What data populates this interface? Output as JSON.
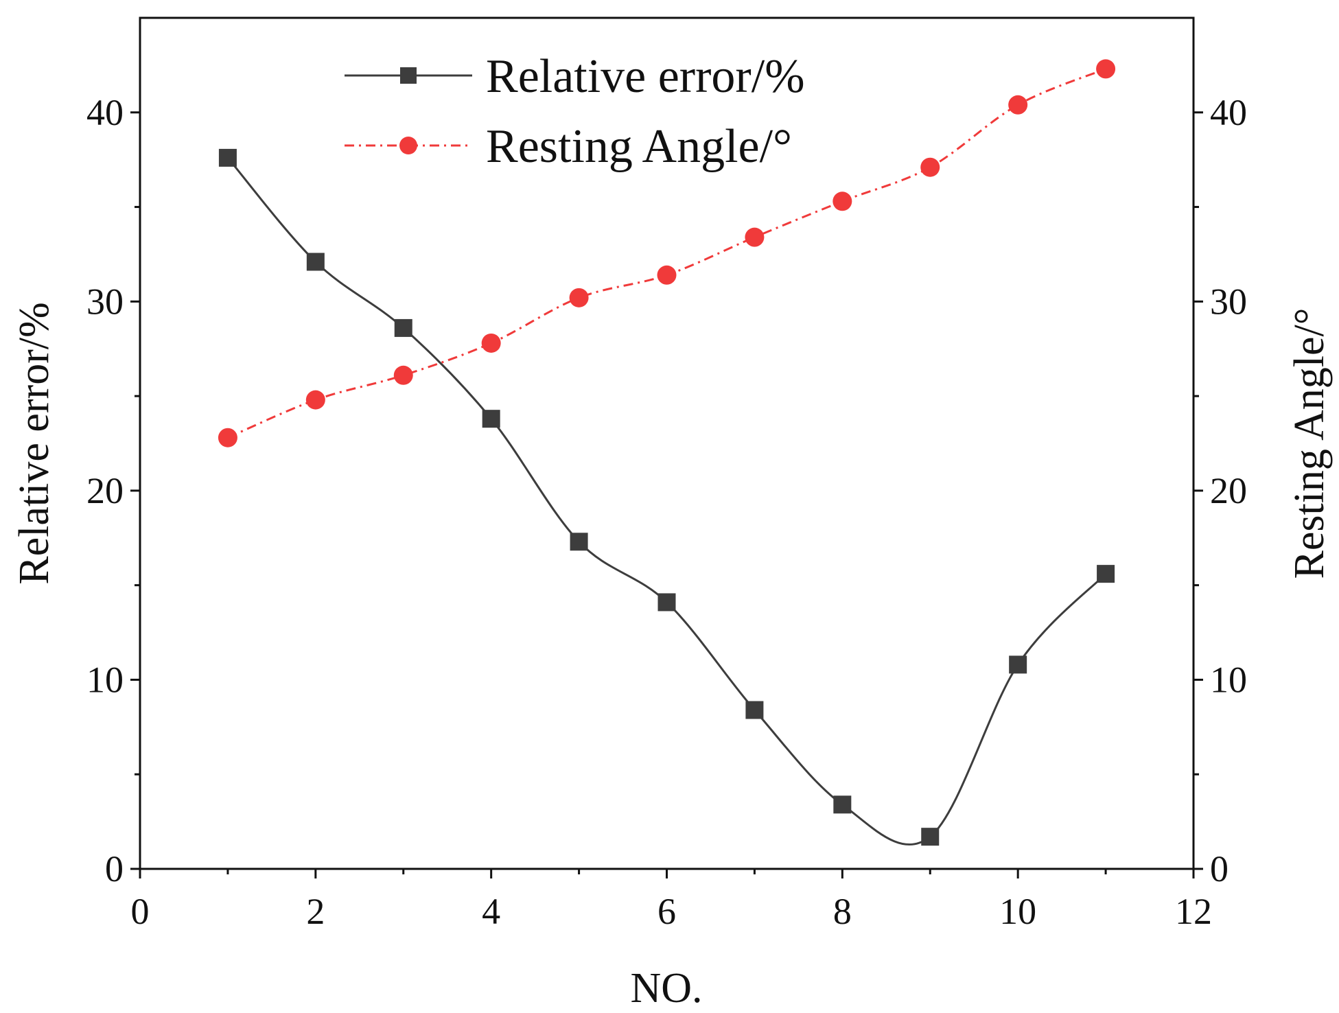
{
  "chart_data": {
    "type": "line",
    "xlabel": "NO.",
    "ylabel_left": "Relative error/%",
    "ylabel_right": "Resting Angle/°",
    "xlim": [
      0,
      12
    ],
    "ylim_left": [
      0,
      45
    ],
    "ylim_right": [
      0,
      45
    ],
    "xticks": [
      0,
      2,
      4,
      6,
      8,
      10,
      12
    ],
    "yticks_left": [
      0,
      10,
      20,
      30,
      40
    ],
    "yticks_right": [
      0,
      10,
      20,
      30,
      40
    ],
    "grid": false,
    "legend_position": "top-center",
    "series": [
      {
        "name": "Relative error/%",
        "axis": "left",
        "color": "#3d3d3d",
        "marker": "square",
        "line_style": "solid",
        "x": [
          1,
          2,
          3,
          4,
          5,
          6,
          7,
          8,
          9,
          10,
          11
        ],
        "y": [
          37.6,
          32.1,
          28.6,
          23.8,
          17.3,
          14.1,
          8.4,
          3.4,
          1.7,
          10.8,
          15.6
        ]
      },
      {
        "name": "Resting Angle/°",
        "axis": "right",
        "color": "#f03a3a",
        "marker": "circle",
        "line_style": "dash-dot",
        "x": [
          1,
          2,
          3,
          4,
          5,
          6,
          7,
          8,
          9,
          10,
          11
        ],
        "y": [
          22.8,
          24.8,
          26.1,
          27.8,
          30.2,
          31.4,
          33.4,
          35.3,
          37.1,
          40.4,
          42.3
        ]
      }
    ]
  }
}
